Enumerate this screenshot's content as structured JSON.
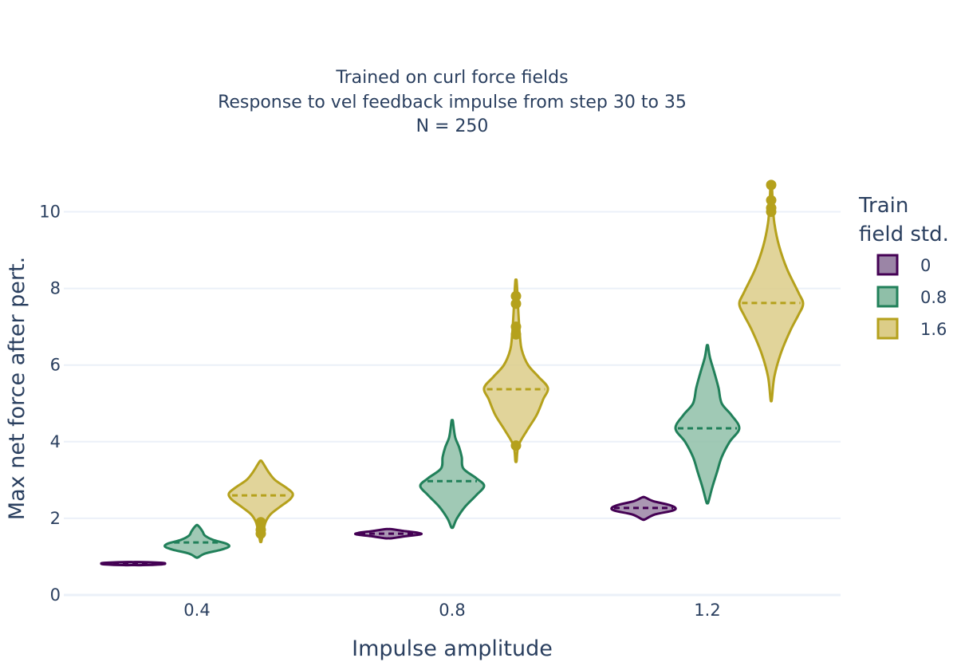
{
  "chart_data": {
    "type": "violin",
    "title_lines": [
      "Trained on curl force fields",
      "Response to vel feedback impulse from step 30 to 35",
      "N = 250"
    ],
    "xlabel": "Impulse amplitude",
    "ylabel": "Max net force after pert.",
    "categories": [
      "0.4",
      "0.8",
      "1.2"
    ],
    "y_ticks": [
      0,
      2,
      4,
      6,
      8,
      10
    ],
    "ylim": [
      0,
      10.8
    ],
    "grid": true,
    "legend": {
      "title_lines": [
        "Train",
        "field std."
      ],
      "placement": "right",
      "entries": [
        "0",
        "0.8",
        "1.6"
      ]
    },
    "series": [
      {
        "name": "0",
        "color": "#440154",
        "fill": "#9b85a6",
        "groups": [
          {
            "category": "0.4",
            "min": 0.78,
            "max": 0.86,
            "mean": 0.82,
            "profile": [
              [
                0.78,
                0.3
              ],
              [
                0.8,
                0.9
              ],
              [
                0.82,
                1.0
              ],
              [
                0.84,
                0.9
              ],
              [
                0.86,
                0.3
              ]
            ],
            "outliers": []
          },
          {
            "category": "0.8",
            "min": 1.48,
            "max": 1.72,
            "mean": 1.6,
            "profile": [
              [
                1.48,
                0.1
              ],
              [
                1.53,
                0.5
              ],
              [
                1.58,
                1.0
              ],
              [
                1.62,
                0.95
              ],
              [
                1.67,
                0.5
              ],
              [
                1.72,
                0.08
              ]
            ],
            "outliers": []
          },
          {
            "category": "1.2",
            "min": 1.97,
            "max": 2.55,
            "mean": 2.27,
            "profile": [
              [
                1.97,
                0.04
              ],
              [
                2.1,
                0.35
              ],
              [
                2.2,
                0.9
              ],
              [
                2.27,
                1.0
              ],
              [
                2.35,
                0.8
              ],
              [
                2.45,
                0.3
              ],
              [
                2.55,
                0.04
              ]
            ],
            "outliers": []
          }
        ]
      },
      {
        "name": "0.8",
        "color": "#21805a",
        "fill": "#8fbfa8",
        "groups": [
          {
            "category": "0.4",
            "min": 0.98,
            "max": 1.82,
            "mean": 1.37,
            "profile": [
              [
                0.98,
                0.03
              ],
              [
                1.08,
                0.25
              ],
              [
                1.18,
                0.75
              ],
              [
                1.26,
                1.0
              ],
              [
                1.34,
                0.92
              ],
              [
                1.44,
                0.5
              ],
              [
                1.55,
                0.25
              ],
              [
                1.65,
                0.18
              ],
              [
                1.75,
                0.1
              ],
              [
                1.82,
                0.02
              ]
            ],
            "outliers": []
          },
          {
            "category": "0.8",
            "min": 1.77,
            "max": 4.55,
            "mean": 2.97,
            "profile": [
              [
                1.77,
                0.03
              ],
              [
                2.0,
                0.15
              ],
              [
                2.3,
                0.4
              ],
              [
                2.6,
                0.75
              ],
              [
                2.85,
                1.0
              ],
              [
                3.05,
                0.75
              ],
              [
                3.3,
                0.35
              ],
              [
                3.6,
                0.3
              ],
              [
                3.85,
                0.22
              ],
              [
                4.1,
                0.1
              ],
              [
                4.35,
                0.05
              ],
              [
                4.55,
                0.02
              ]
            ],
            "outliers": []
          },
          {
            "category": "1.2",
            "min": 2.42,
            "max": 6.5,
            "mean": 4.35,
            "profile": [
              [
                2.42,
                0.03
              ],
              [
                2.8,
                0.15
              ],
              [
                3.2,
                0.3
              ],
              [
                3.6,
                0.45
              ],
              [
                4.0,
                0.7
              ],
              [
                4.35,
                1.0
              ],
              [
                4.7,
                0.75
              ],
              [
                5.0,
                0.45
              ],
              [
                5.4,
                0.35
              ],
              [
                5.8,
                0.22
              ],
              [
                6.2,
                0.08
              ],
              [
                6.5,
                0.02
              ]
            ],
            "outliers": []
          }
        ]
      },
      {
        "name": "1.6",
        "color": "#b5a11c",
        "fill": "#dccd88",
        "groups": [
          {
            "category": "0.4",
            "min": 1.4,
            "max": 3.5,
            "mean": 2.6,
            "profile": [
              [
                1.4,
                0.02
              ],
              [
                1.65,
                0.08
              ],
              [
                1.9,
                0.15
              ],
              [
                2.1,
                0.3
              ],
              [
                2.3,
                0.6
              ],
              [
                2.5,
                0.92
              ],
              [
                2.65,
                1.0
              ],
              [
                2.8,
                0.8
              ],
              [
                3.0,
                0.45
              ],
              [
                3.2,
                0.25
              ],
              [
                3.4,
                0.1
              ],
              [
                3.5,
                0.02
              ]
            ],
            "outliers": [
              1.6,
              1.7,
              1.9
            ]
          },
          {
            "category": "0.8",
            "min": 3.5,
            "max": 8.2,
            "mean": 5.37,
            "profile": [
              [
                3.5,
                0.02
              ],
              [
                3.9,
                0.08
              ],
              [
                4.3,
                0.35
              ],
              [
                4.7,
                0.65
              ],
              [
                5.1,
                0.85
              ],
              [
                5.4,
                1.0
              ],
              [
                5.7,
                0.7
              ],
              [
                6.0,
                0.38
              ],
              [
                6.4,
                0.18
              ],
              [
                6.8,
                0.12
              ],
              [
                7.3,
                0.08
              ],
              [
                7.8,
                0.05
              ],
              [
                8.2,
                0.02
              ]
            ],
            "outliers": [
              3.9,
              6.8,
              7.0,
              7.6,
              7.8
            ]
          },
          {
            "category": "1.2",
            "min": 5.1,
            "max": 10.75,
            "mean": 7.62,
            "profile": [
              [
                5.1,
                0.02
              ],
              [
                5.7,
                0.1
              ],
              [
                6.3,
                0.3
              ],
              [
                6.9,
                0.6
              ],
              [
                7.3,
                0.85
              ],
              [
                7.6,
                1.0
              ],
              [
                7.9,
                0.85
              ],
              [
                8.5,
                0.5
              ],
              [
                9.1,
                0.25
              ],
              [
                9.7,
                0.1
              ],
              [
                10.2,
                0.05
              ],
              [
                10.75,
                0.02
              ]
            ],
            "outliers": [
              10.0,
              10.1,
              10.3,
              10.7
            ]
          }
        ]
      }
    ]
  }
}
